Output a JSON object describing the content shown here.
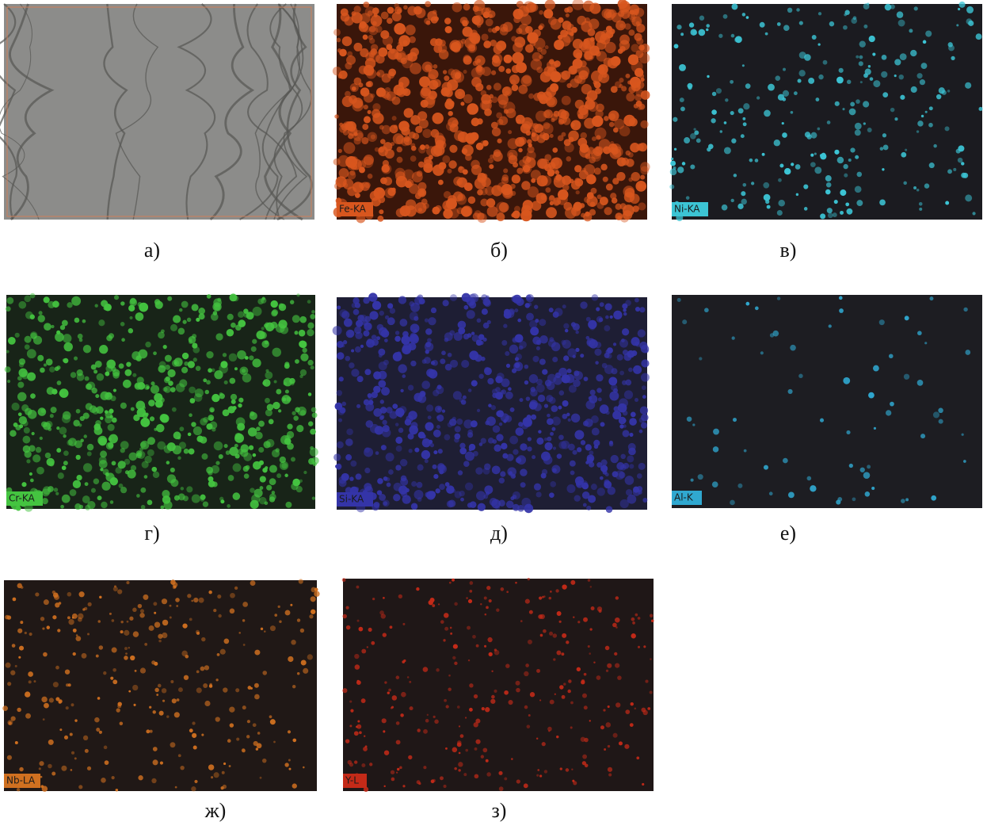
{
  "panels": [
    {
      "caption": "а)"
    },
    {
      "tag": "Fe-KA",
      "caption": "б)"
    },
    {
      "tag": "Ni-KA",
      "caption": "в)"
    },
    {
      "tag": "Cr-KA",
      "caption": "г)"
    },
    {
      "tag": "Si-KA",
      "caption": "д)"
    },
    {
      "tag": "Al-K",
      "caption": "е)"
    },
    {
      "tag": "Nb-LA",
      "caption": "ж)"
    },
    {
      "tag": "Y-L",
      "caption": "з)"
    }
  ]
}
